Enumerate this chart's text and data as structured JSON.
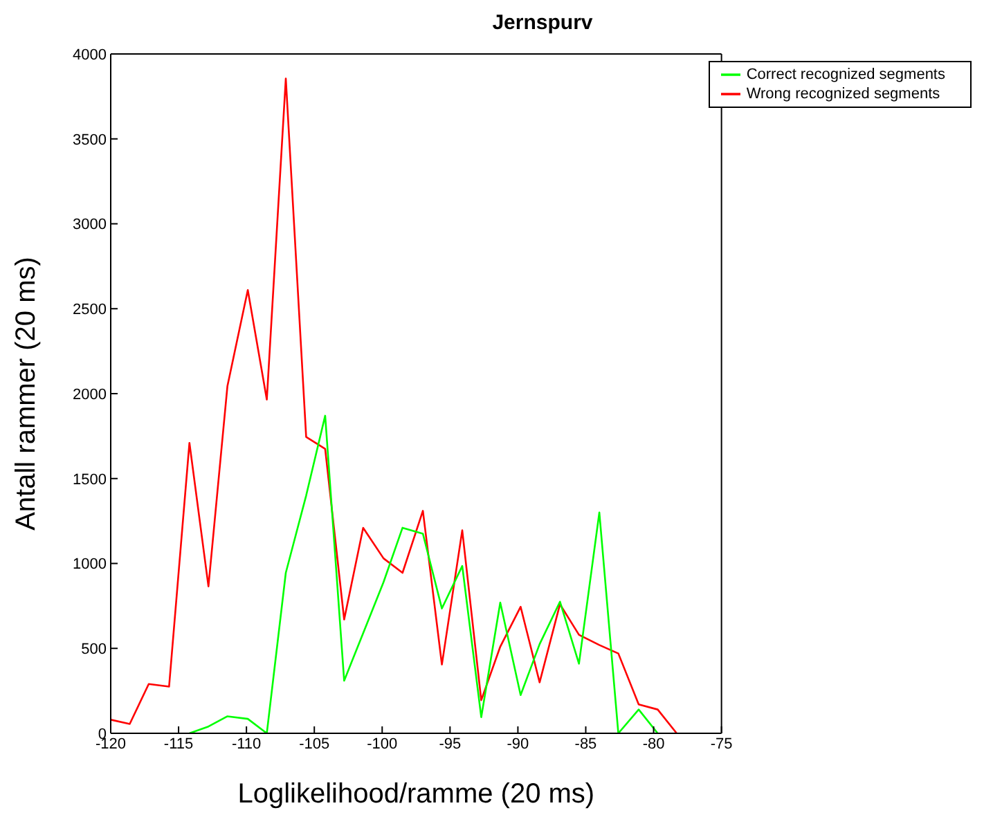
{
  "chart_data": {
    "type": "line",
    "title": "Jernspurv",
    "xlabel": "Loglikelihood/ramme (20 ms)",
    "ylabel": "Antall rammer (20 ms)",
    "xlim": [
      -120,
      -75
    ],
    "xticks": [
      -120,
      -115,
      -110,
      -105,
      -100,
      -95,
      -90,
      -85,
      -80,
      -75
    ],
    "ylim": [
      0,
      4000
    ],
    "yticks": [
      0,
      500,
      1000,
      1500,
      2000,
      2500,
      3000,
      3500,
      4000
    ],
    "grid": false,
    "legend": "top right",
    "marker": "none",
    "line_style": "solid",
    "series": [
      {
        "name": "Wrong recognized segments",
        "color": "#ff0000",
        "x": [
          -120,
          -118.6,
          -117.2,
          -115.7,
          -114.2,
          -112.8,
          -111.4,
          -109.9,
          -108.5,
          -107.1,
          -105.6,
          -104.2,
          -102.8,
          -101.4,
          -99.9,
          -98.5,
          -97.0,
          -95.6,
          -94.1,
          -92.7,
          -91.3,
          -89.8,
          -88.4,
          -86.9,
          -85.5,
          -84.0,
          -82.6,
          -81.1,
          -79.7,
          -78.3
        ],
        "values": [
          80,
          55,
          290,
          275,
          1710,
          865,
          2045,
          2610,
          1965,
          3855,
          1745,
          1675,
          670,
          1210,
          1030,
          945,
          1310,
          405,
          1195,
          195,
          510,
          745,
          300,
          760,
          580,
          520,
          470,
          170,
          140,
          0
        ]
      },
      {
        "name": "Correct recognized segments",
        "color": "#00ff00",
        "x": [
          -114.2,
          -112.8,
          -111.4,
          -109.9,
          -108.5,
          -107.1,
          -105.6,
          -104.2,
          -102.8,
          -101.4,
          -99.9,
          -98.5,
          -97.0,
          -95.6,
          -94.1,
          -92.7,
          -91.3,
          -89.8,
          -88.4,
          -86.9,
          -85.5,
          -84.0,
          -82.6,
          -81.1,
          -79.7
        ],
        "values": [
          0,
          40,
          100,
          85,
          0,
          945,
          1400,
          1870,
          310,
          590,
          890,
          1210,
          1175,
          735,
          985,
          95,
          770,
          225,
          525,
          775,
          410,
          1300,
          0,
          140,
          0
        ]
      }
    ]
  }
}
